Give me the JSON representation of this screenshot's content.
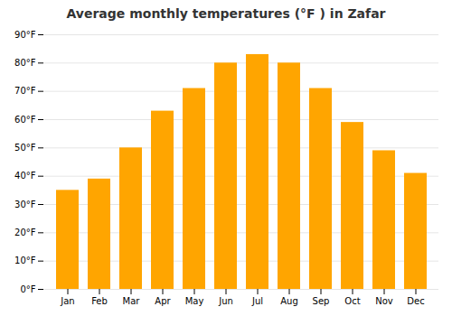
{
  "chart_data": {
    "type": "bar",
    "title": "Average monthly temperatures (°F ) in Zafar",
    "categories": [
      "Jan",
      "Feb",
      "Mar",
      "Apr",
      "May",
      "Jun",
      "Jul",
      "Aug",
      "Sep",
      "Oct",
      "Nov",
      "Dec"
    ],
    "values": [
      35,
      39,
      50,
      63,
      71,
      80,
      83,
      80,
      71,
      59,
      49,
      41
    ],
    "color": "#FFA500",
    "ylim": [
      0,
      90
    ],
    "yticks": [
      {
        "value": 0,
        "label": "0°F"
      },
      {
        "value": 10,
        "label": "10°F"
      },
      {
        "value": 20,
        "label": "20°F"
      },
      {
        "value": 30,
        "label": "30°F"
      },
      {
        "value": 40,
        "label": "40°F"
      },
      {
        "value": 50,
        "label": "50°F"
      },
      {
        "value": 60,
        "label": "60°F"
      },
      {
        "value": 70,
        "label": "70°F"
      },
      {
        "value": 80,
        "label": "80°F"
      },
      {
        "value": 90,
        "label": "90°F"
      }
    ],
    "grid": true
  }
}
